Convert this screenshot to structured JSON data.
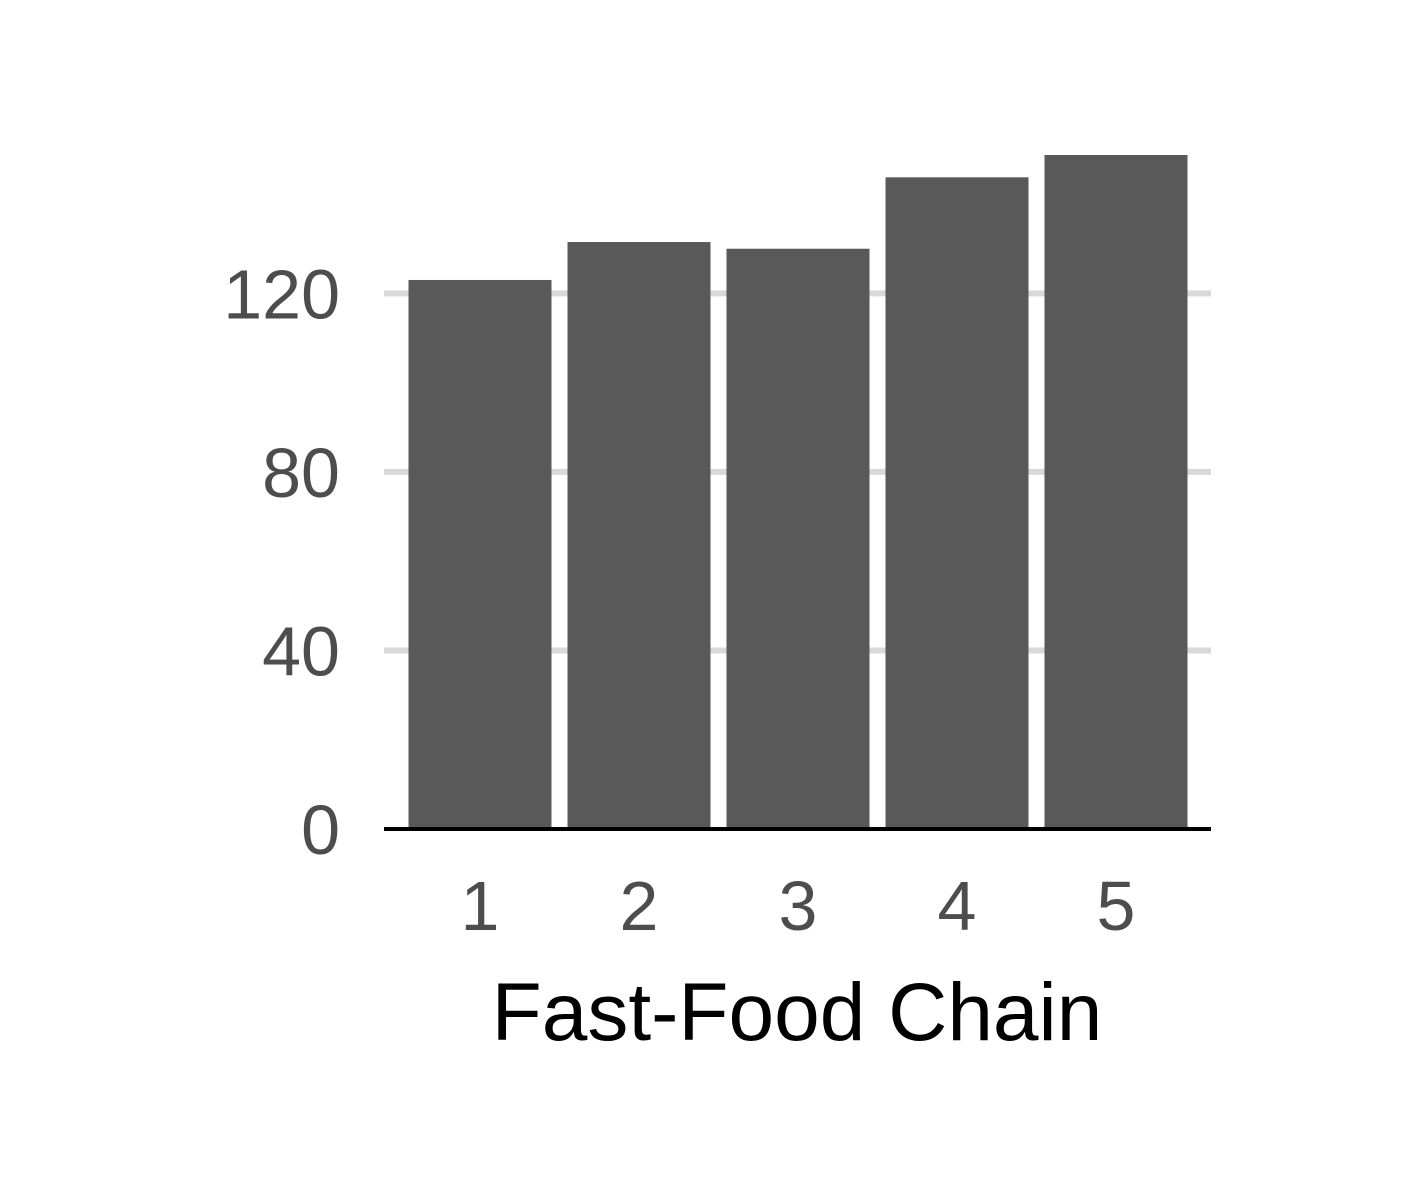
{
  "chart_data": {
    "type": "bar",
    "title": "",
    "xlabel": "Fast-Food Chain",
    "ylabel": "",
    "categories": [
      "1",
      "2",
      "3",
      "4",
      "5"
    ],
    "values": [
      123,
      131.5,
      130,
      146,
      151
    ],
    "ylim": [
      0,
      151
    ],
    "yticks": [
      0,
      40,
      80,
      120
    ],
    "grid": "horizontal",
    "legend": "none",
    "colors": {
      "bar": "#595959",
      "grid": "#d9d9d9",
      "axis": "#000000",
      "tick_text": "#4d4d4d",
      "title_text": "#000000"
    }
  }
}
